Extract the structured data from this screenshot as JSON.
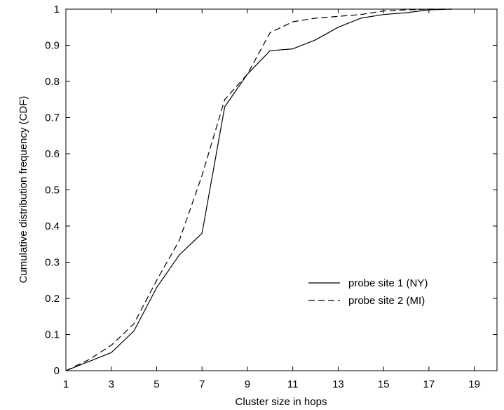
{
  "chart_data": {
    "type": "line",
    "xlabel": "Cluster size in hops",
    "ylabel": "Cumulative distribution frequency (CDF)",
    "xlim": [
      1,
      20
    ],
    "ylim": [
      0,
      1
    ],
    "xticks": [
      1,
      3,
      5,
      7,
      9,
      11,
      13,
      15,
      17,
      19
    ],
    "yticks": [
      0,
      0.1,
      0.2,
      0.3,
      0.4,
      0.5,
      0.6,
      0.7,
      0.8,
      0.9,
      1
    ],
    "ytick_labels": [
      "0",
      "0.1",
      "0.2",
      "0.3",
      "0.4",
      "0.5",
      "0.6",
      "0.7",
      "0.8",
      "0.9",
      "1"
    ],
    "grid": false,
    "legend_position": "bottom-right",
    "series": [
      {
        "name": "probe site 1 (NY)",
        "style": "solid",
        "x": [
          1,
          2,
          3,
          4,
          5,
          6,
          7,
          8,
          9,
          10,
          11,
          12,
          13,
          14,
          15,
          16,
          17,
          18
        ],
        "y": [
          0,
          0.025,
          0.05,
          0.11,
          0.23,
          0.32,
          0.38,
          0.73,
          0.82,
          0.885,
          0.89,
          0.915,
          0.95,
          0.975,
          0.985,
          0.99,
          0.998,
          1.0
        ]
      },
      {
        "name": "probe site 2 (MI)",
        "style": "dashed",
        "x": [
          1,
          2,
          3,
          4,
          5,
          6,
          7,
          8,
          9,
          10,
          11,
          12,
          13,
          14,
          15,
          16,
          17,
          18
        ],
        "y": [
          0,
          0.03,
          0.07,
          0.13,
          0.25,
          0.36,
          0.54,
          0.75,
          0.82,
          0.935,
          0.965,
          0.975,
          0.98,
          0.985,
          0.995,
          0.998,
          1.0,
          1.0
        ]
      }
    ]
  }
}
